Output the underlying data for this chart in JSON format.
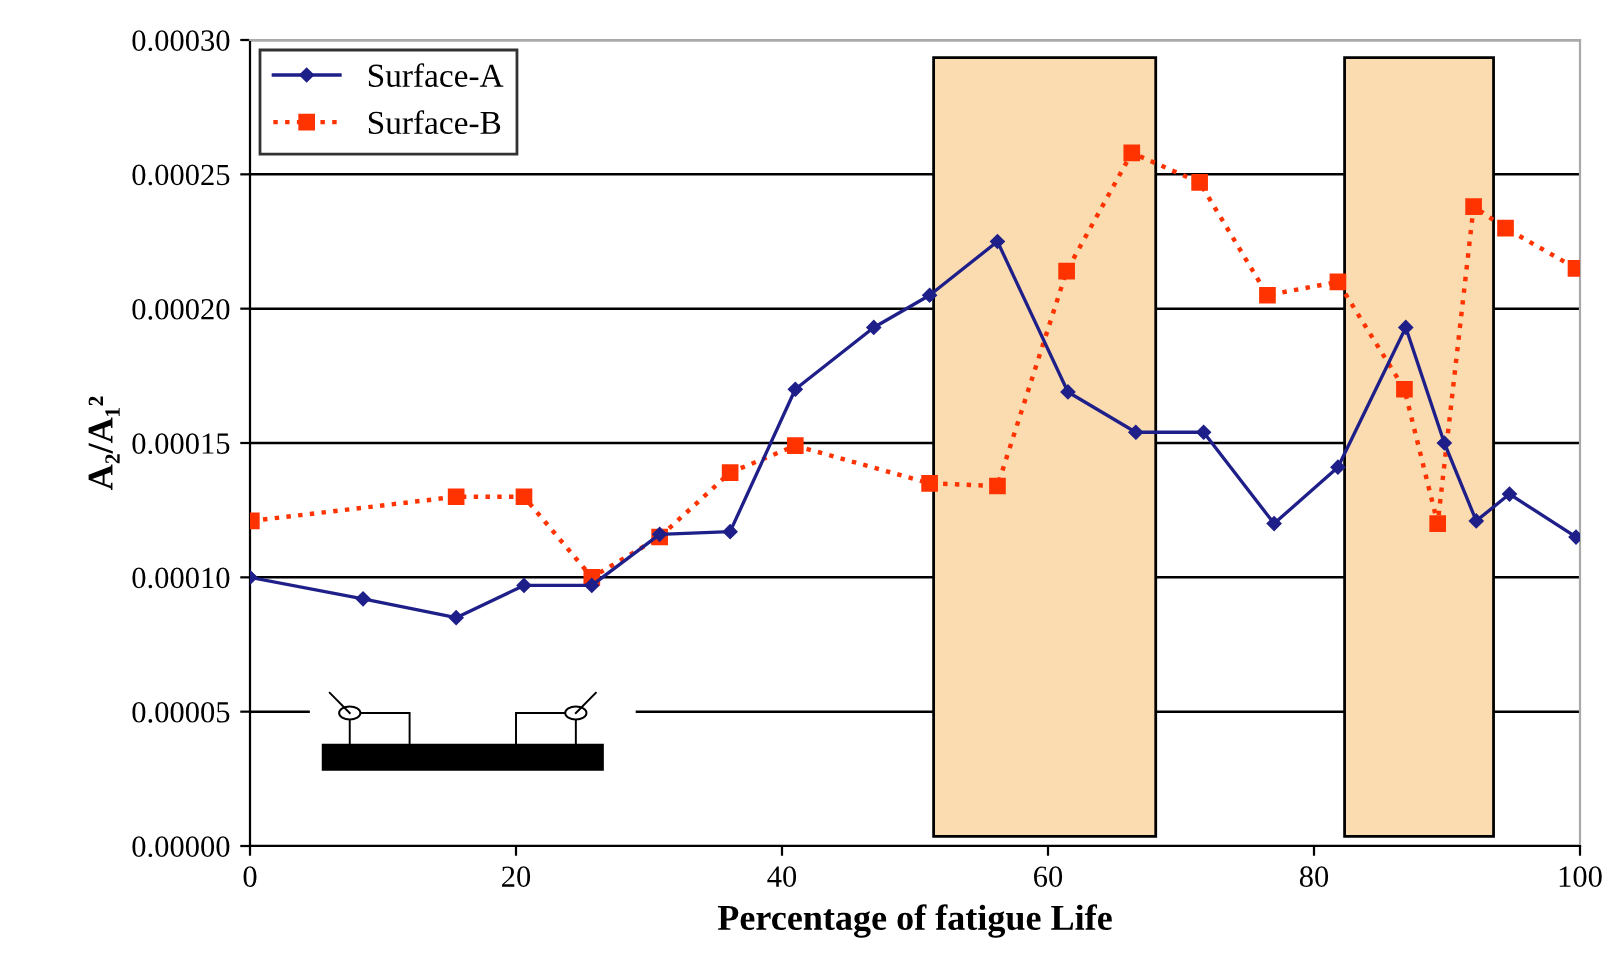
{
  "chart_data": {
    "type": "line",
    "xlabel": "Percentage of fatigue Life",
    "ylabel": "A₂/A₁²",
    "xlim": [
      0,
      100
    ],
    "xticks": [
      0,
      20,
      40,
      60,
      80,
      100
    ],
    "ylim": [
      0,
      0.0003
    ],
    "yticks": [
      {
        "value": 0,
        "label": "0.00000"
      },
      {
        "value": 5e-05,
        "label": "0.00005"
      },
      {
        "value": 0.0001,
        "label": "0.00010"
      },
      {
        "value": 0.00015,
        "label": "0.00015"
      },
      {
        "value": 0.0002,
        "label": "0.00020"
      },
      {
        "value": 0.00025,
        "label": "0.00025"
      },
      {
        "value": 0.0003,
        "label": "0.00030"
      }
    ],
    "grid": "y",
    "legend": "top left",
    "series": [
      {
        "name": "Surface-A",
        "color": "#1f1f8a",
        "marker": "diamond",
        "line_style": "solid",
        "x": [
          0,
          8.5,
          15.5,
          20.6,
          25.7,
          30.8,
          36.1,
          41,
          46.9,
          51.1,
          56.2,
          61.5,
          66.6,
          71.7,
          77,
          81.8,
          86.9,
          89.8,
          92.2,
          94.7,
          99.7
        ],
        "values": [
          0.0001,
          9.2e-05,
          8.5e-05,
          9.7e-05,
          9.7e-05,
          0.000116,
          0.000117,
          0.00017,
          0.000193,
          0.000205,
          0.000225,
          0.000169,
          0.000154,
          0.000154,
          0.00012,
          0.000141,
          0.000193,
          0.00015,
          0.000121,
          0.000131,
          0.000115
        ]
      },
      {
        "name": "Surface-B",
        "color": "#ff3300",
        "marker": "square",
        "line_style": "dotted",
        "x": [
          0.1,
          15.5,
          20.6,
          25.7,
          30.8,
          36.1,
          41,
          51.1,
          56.2,
          61.4,
          66.3,
          71.4,
          76.5,
          81.8,
          86.8,
          89.3,
          92,
          94.4,
          99.7
        ],
        "values": [
          0.000121,
          0.00013,
          0.00013,
          0.0001,
          0.000115,
          0.000139,
          0.000149,
          0.000135,
          0.000134,
          0.000214,
          0.000258,
          0.000247,
          0.000205,
          0.00021,
          0.00017,
          0.00012,
          0.000238,
          0.00023,
          0.000215
        ]
      }
    ],
    "bands": [
      {
        "axis": "x",
        "from": 51.4,
        "to": 68.1,
        "color": "#fbdcb0"
      },
      {
        "axis": "x",
        "from": 82.3,
        "to": 93.5,
        "color": "#fbdcb0"
      }
    ]
  }
}
